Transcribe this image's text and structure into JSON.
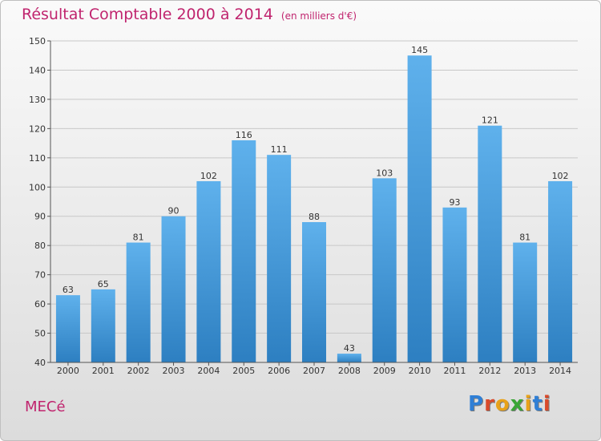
{
  "header": {
    "title": "Résultat Comptable 2000 à 2014",
    "unit": "(en milliers d'€)"
  },
  "footer": {
    "commune": "MECé",
    "logo": "Proxiti"
  },
  "logo_colors": [
    "#2f7fd6",
    "#d94a2b",
    "#e8a21a",
    "#3aa635",
    "#e8a21a",
    "#2f7fd6",
    "#d94a2b"
  ],
  "chart_data": {
    "type": "bar",
    "title": "Résultat Comptable 2000 à 2014",
    "xlabel": "",
    "ylabel": "",
    "categories": [
      "2000",
      "2001",
      "2002",
      "2003",
      "2004",
      "2005",
      "2006",
      "2007",
      "2008",
      "2009",
      "2010",
      "2011",
      "2012",
      "2013",
      "2014"
    ],
    "values": [
      63,
      65,
      81,
      90,
      102,
      116,
      111,
      88,
      43,
      103,
      145,
      93,
      121,
      81,
      102
    ],
    "ylim": [
      40,
      150
    ],
    "yticks": [
      40,
      50,
      60,
      70,
      80,
      90,
      100,
      110,
      120,
      130,
      140,
      150
    ],
    "grid": true,
    "bar_color_top": "#5fb1ec",
    "bar_color_bottom": "#2d7fc1",
    "grid_color": "#c8c8c8"
  }
}
